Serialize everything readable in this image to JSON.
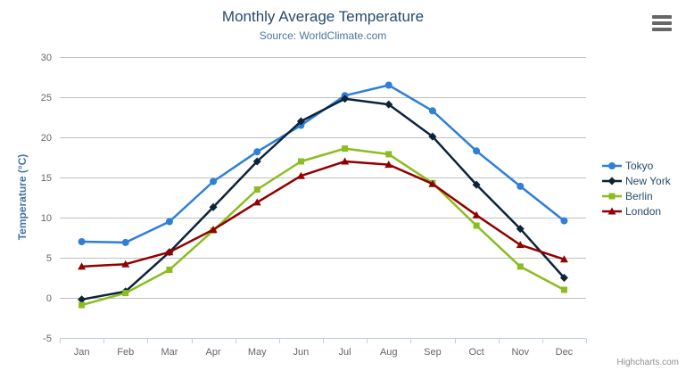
{
  "chart_data": {
    "type": "line",
    "title": "Monthly Average Temperature",
    "subtitle": "Source: WorldClimate.com",
    "xlabel": "",
    "ylabel": "Temperature (°C)",
    "ylim": [
      -5,
      30
    ],
    "ytick_step": 5,
    "grid": true,
    "legend_position": "right",
    "categories": [
      "Jan",
      "Feb",
      "Mar",
      "Apr",
      "May",
      "Jun",
      "Jul",
      "Aug",
      "Sep",
      "Oct",
      "Nov",
      "Dec"
    ],
    "series": [
      {
        "name": "Tokyo",
        "marker": "circle",
        "color": "#2f7ed8",
        "values": [
          7.0,
          6.9,
          9.5,
          14.5,
          18.2,
          21.5,
          25.2,
          26.5,
          23.3,
          18.3,
          13.9,
          9.6
        ]
      },
      {
        "name": "New York",
        "marker": "diamond",
        "color": "#0d233a",
        "values": [
          -0.2,
          0.8,
          5.7,
          11.3,
          17.0,
          22.0,
          24.8,
          24.1,
          20.1,
          14.1,
          8.6,
          2.5
        ]
      },
      {
        "name": "Berlin",
        "marker": "square",
        "color": "#8bbc21",
        "values": [
          -0.9,
          0.6,
          3.5,
          8.4,
          13.5,
          17.0,
          18.6,
          17.9,
          14.3,
          9.0,
          3.9,
          1.0
        ]
      },
      {
        "name": "London",
        "marker": "triangle",
        "color": "#910000",
        "values": [
          3.9,
          4.2,
          5.7,
          8.5,
          11.9,
          15.2,
          17.0,
          16.6,
          14.2,
          10.3,
          6.6,
          4.8
        ]
      }
    ]
  },
  "credits": "Highcharts.com",
  "theme": {
    "background": "#ffffff",
    "title_color": "#274b6d",
    "subtitle_color": "#4d759e",
    "axis_label_color": "#666666",
    "axis_title_color": "#4572a7",
    "gridline_color": "#c0c0c0",
    "axis_line_color": "#c0d0e0",
    "legend_text_color": "#274b6d",
    "credits_color": "#909090",
    "menu_icon_color": "#666666"
  }
}
